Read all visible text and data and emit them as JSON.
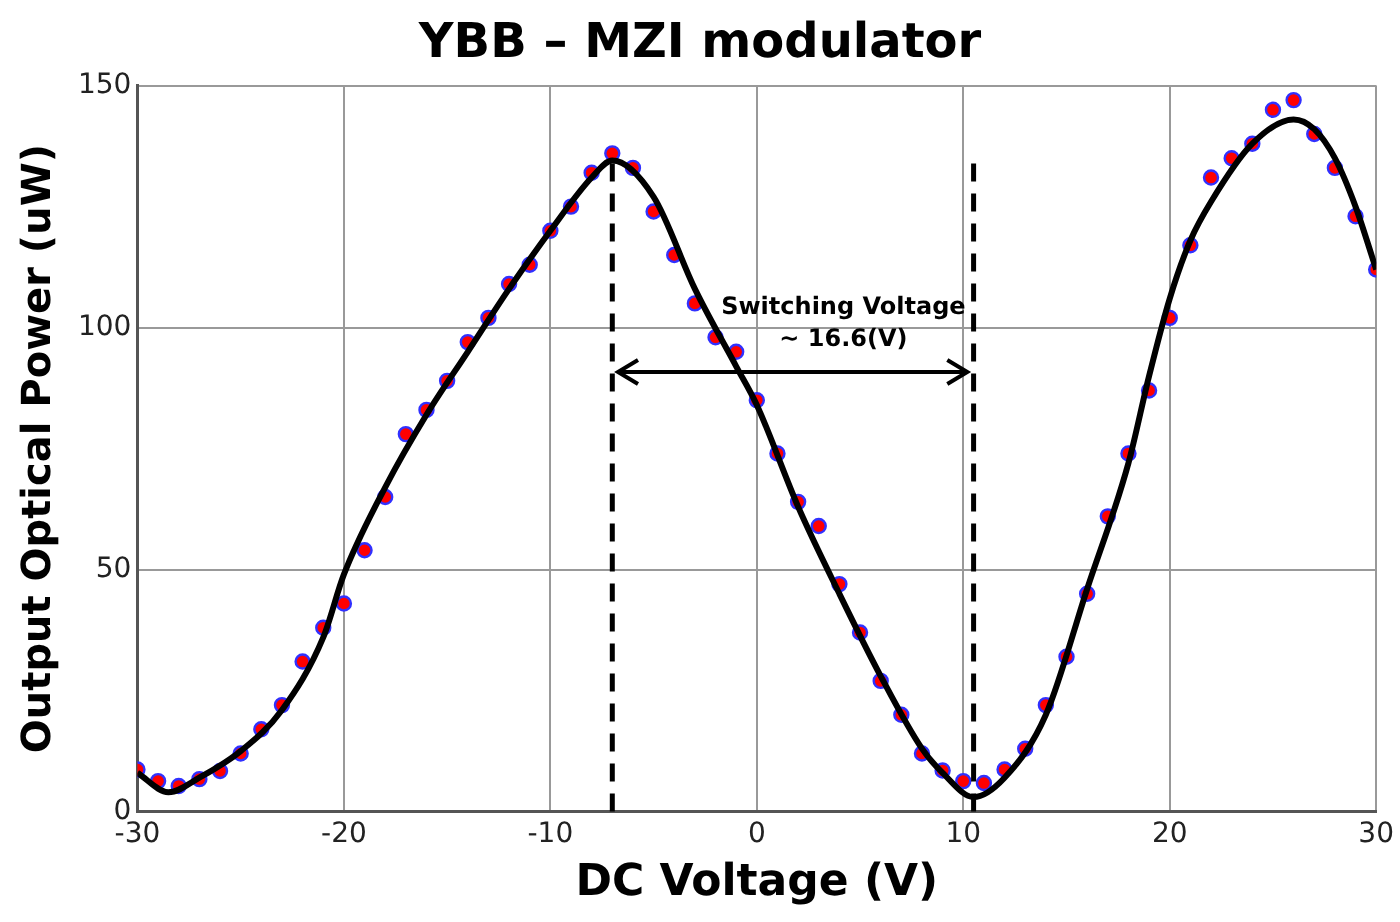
{
  "chart_data": {
    "type": "scatter",
    "title": "YBB – MZI modulator",
    "xlabel": "DC Voltage (V)",
    "ylabel": "Output Optical Power (uW)",
    "xlim": [
      -30,
      30
    ],
    "xticks": [
      -30,
      -20,
      -10,
      0,
      10,
      20,
      30
    ],
    "ylim": [
      0,
      150
    ],
    "yticks": [
      0,
      50,
      100,
      150
    ],
    "grid": true,
    "marker": "circle",
    "series": [
      {
        "color": "#ff0000",
        "x": [
          -30,
          -29,
          -28,
          -27,
          -26,
          -25,
          -24,
          -23,
          -22,
          -21,
          -20,
          -19,
          -18,
          -17,
          -16,
          -15,
          -14,
          -13,
          -12,
          -11,
          -10,
          -9,
          -8,
          -7,
          -6,
          -5,
          -4,
          -3,
          -2,
          -1,
          0,
          1,
          2,
          3,
          4,
          5,
          6,
          7,
          8,
          9,
          10,
          11,
          12,
          13,
          14,
          15,
          16,
          17,
          18,
          19,
          20,
          21,
          22,
          23,
          24,
          25,
          26,
          27,
          28,
          29,
          30
        ],
        "values": [
          8.7,
          6.3,
          5.3,
          6.7,
          8.4,
          12,
          17,
          22,
          31,
          38,
          43,
          54,
          65,
          78,
          83,
          89,
          97,
          102,
          109,
          113,
          120,
          125,
          132,
          136,
          133,
          124,
          115,
          105,
          98,
          95,
          85,
          74,
          64,
          59,
          47,
          37,
          27,
          20,
          12,
          8.5,
          6.3,
          5.9,
          8.7,
          13,
          22,
          32,
          45,
          61,
          74,
          87,
          102,
          117,
          131,
          135,
          138,
          145,
          147,
          140,
          133,
          123,
          112
        ]
      },
      {
        "type": "line",
        "color": "#000000",
        "marker": "none",
        "line_style": "solid",
        "x": [
          -30,
          -28.5,
          -27,
          -25,
          -23,
          -21,
          -20,
          -18,
          -16,
          -14,
          -12,
          -10,
          -8,
          -7,
          -5,
          -3,
          -1,
          0,
          2,
          4,
          6,
          8,
          9,
          10.5,
          12,
          14,
          16,
          18,
          19,
          20,
          21,
          22,
          24,
          26,
          27,
          28,
          29,
          30
        ],
        "values": [
          8,
          4,
          7,
          12.5,
          21,
          36,
          49,
          67,
          82,
          95,
          108,
          120,
          131,
          134.5,
          127,
          108,
          92,
          84,
          63,
          45,
          28,
          13,
          8,
          3,
          7,
          20,
          46,
          72,
          90,
          106,
          118,
          126,
          138,
          143,
          141,
          135,
          125,
          112
        ]
      }
    ],
    "ref_lines": [
      {
        "axis": "x",
        "value": -7,
        "color": "#000000",
        "line_style": "dashed"
      },
      {
        "axis": "x",
        "value": 10.5,
        "color": "#000000",
        "line_style": "dashed"
      }
    ],
    "annotations": [
      "Switching Voltage",
      "~ 16.6(V)"
    ]
  }
}
